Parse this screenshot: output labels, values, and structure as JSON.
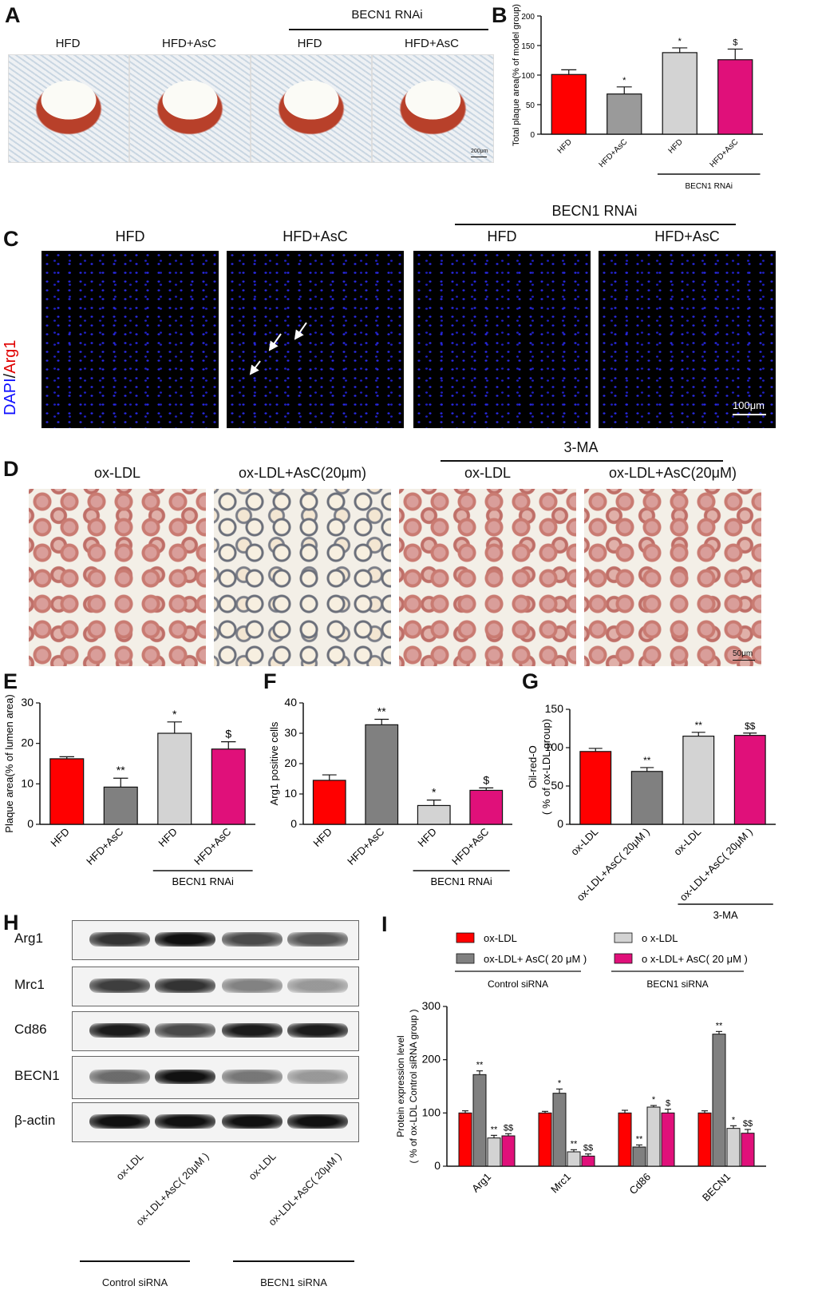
{
  "panel_letters": [
    "A",
    "B",
    "C",
    "D",
    "E",
    "F",
    "G",
    "H",
    "I"
  ],
  "panelA": {
    "labels": [
      "HFD",
      "HFD+AsC",
      "HFD",
      "HFD+AsC"
    ],
    "group_label": "BECN1 RNAi",
    "scale": "200μm"
  },
  "panelC": {
    "labels": [
      "HFD",
      "HFD+AsC",
      "HFD",
      "HFD+AsC"
    ],
    "group_label": "BECN1 RNAi",
    "side_label_dapi": "DAPI",
    "side_label_slash": "/",
    "side_label_arg1": "Arg1",
    "scale": "100μm"
  },
  "panelD": {
    "labels": [
      "ox-LDL",
      "ox-LDL+AsC(20μm)",
      "ox-LDL",
      "ox-LDL+AsC(20μM)"
    ],
    "group_label": "3-MA",
    "scale": "50μm"
  },
  "panelH": {
    "proteins": [
      "Arg1",
      "Mrc1",
      "Cd86",
      "BECN1",
      "β-actin"
    ],
    "lanes": [
      "ox-LDL",
      "ox-LDL+AsC( 20μM )",
      "ox-LDL",
      "ox-LDL+AsC( 20μM )"
    ],
    "group_labels": [
      "Control siRNA",
      "BECN1 siRNA"
    ],
    "band_intensity": [
      [
        0.85,
        1.0,
        0.75,
        0.7
      ],
      [
        0.8,
        0.85,
        0.5,
        0.4
      ],
      [
        0.95,
        0.75,
        0.95,
        0.95
      ],
      [
        0.6,
        1.0,
        0.55,
        0.4
      ],
      [
        1.0,
        1.0,
        1.0,
        1.0
      ]
    ]
  },
  "chart_data": [
    {
      "id": "B",
      "type": "bar",
      "ylabel": "Total plaque area(% of model group)",
      "categories": [
        "HFD",
        "HFD+AsC",
        "HFD",
        "HFD+AsC"
      ],
      "values": [
        101,
        68,
        138,
        126
      ],
      "errors": [
        8,
        12,
        8,
        18
      ],
      "sig": [
        "",
        "*",
        "*",
        "$"
      ],
      "colors": [
        "#ff0000",
        "#9a9a9a",
        "#d3d3d3",
        "#e0107a"
      ],
      "ylim": [
        0,
        200
      ],
      "yticks": [
        0,
        50,
        100,
        150,
        200
      ],
      "group_label": "BECN1 RNAi"
    },
    {
      "id": "E",
      "type": "bar",
      "ylabel": "Plaque area(% of lumen area)",
      "categories": [
        "HFD",
        "HFD+AsC",
        "HFD",
        "HFD+AsC"
      ],
      "values": [
        16.2,
        9.2,
        22.5,
        18.6
      ],
      "errors": [
        0.5,
        2.2,
        2.8,
        1.8
      ],
      "sig": [
        "",
        "**",
        "*",
        "$"
      ],
      "colors": [
        "#ff0000",
        "#808080",
        "#d3d3d3",
        "#e0107a"
      ],
      "ylim": [
        0,
        30
      ],
      "yticks": [
        0,
        10,
        20,
        30
      ],
      "group_label": "BECN1 RNAi"
    },
    {
      "id": "F",
      "type": "bar",
      "ylabel": "Arg1 positive cells",
      "categories": [
        "HFD",
        "HFD+AsC",
        "HFD",
        "HFD+AsC"
      ],
      "values": [
        14.5,
        32.8,
        6.2,
        11.2
      ],
      "errors": [
        1.8,
        1.8,
        1.8,
        0.8
      ],
      "sig": [
        "",
        "**",
        "*",
        "$"
      ],
      "colors": [
        "#ff0000",
        "#808080",
        "#d3d3d3",
        "#e0107a"
      ],
      "ylim": [
        0,
        40
      ],
      "yticks": [
        0,
        10,
        20,
        30,
        40
      ],
      "group_label": "BECN1 RNAi"
    },
    {
      "id": "G",
      "type": "bar",
      "ylabel": "Oil-red-O",
      "ylabel2": "( % of ox-LDL group)",
      "categories": [
        "ox-LDL",
        "ox-LDL+AsC( 20μM )",
        "ox-LDL",
        "ox-LDL+AsC( 20μM )"
      ],
      "values": [
        95,
        69,
        115,
        116
      ],
      "errors": [
        4,
        5,
        5,
        3
      ],
      "sig": [
        "",
        "**",
        "**",
        "$$"
      ],
      "colors": [
        "#ff0000",
        "#808080",
        "#d3d3d3",
        "#e0107a"
      ],
      "ylim": [
        0,
        150
      ],
      "yticks": [
        0,
        50,
        100,
        150
      ],
      "group_label": "3-MA"
    },
    {
      "id": "I",
      "type": "bar",
      "ylabel": "Protein expression  level",
      "ylabel2": "( % of ox-LDL Control siRNA group )",
      "categories": [
        "Arg1",
        "Mrc1",
        "Cd86",
        "BECN1"
      ],
      "series": [
        {
          "name": "ox-LDL",
          "values": [
            100,
            100,
            100,
            100
          ],
          "errors": [
            4,
            3,
            5,
            4
          ],
          "sig": [
            "",
            "",
            "",
            ""
          ],
          "color": "#ff0000"
        },
        {
          "name": "ox-LDL+ AsC( 20 μM )",
          "values": [
            172,
            137,
            36,
            248
          ],
          "errors": [
            7,
            8,
            4,
            5
          ],
          "sig": [
            "**",
            "*",
            "**",
            "**"
          ],
          "color": "#808080"
        },
        {
          "name": "o x-LDL",
          "values": [
            53,
            27,
            111,
            71
          ],
          "errors": [
            5,
            4,
            3,
            5
          ],
          "sig": [
            "**",
            "**",
            "*",
            "*"
          ],
          "color": "#d3d3d3"
        },
        {
          "name": "o x-LDL+ AsC( 20 μM )",
          "values": [
            57,
            19,
            100,
            62
          ],
          "errors": [
            4,
            4,
            7,
            7
          ],
          "sig": [
            "$$",
            "$$",
            "$",
            "$$"
          ],
          "color": "#e0107a"
        }
      ],
      "legend_groups": [
        "Control siRNA",
        "BECN1 siRNA"
      ],
      "ylim": [
        0,
        300
      ],
      "yticks": [
        0,
        100,
        200,
        300
      ]
    }
  ]
}
